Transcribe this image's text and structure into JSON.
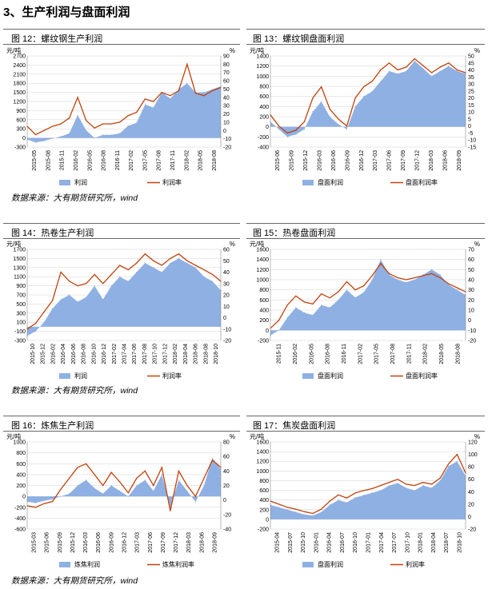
{
  "section_title": "3、生产利润与盘面利润",
  "source": "数据来源：大有期货研究所，wind",
  "colors": {
    "area": "#8fb0e2",
    "line": "#c2410c",
    "grid": "#d0d0d0"
  },
  "chart_data": [
    {
      "type": "area",
      "title": "图 12：螺纹钢生产利润",
      "left_unit": "元/吨",
      "right_unit": "%",
      "ylim": [
        -300,
        2700
      ],
      "y2lim": [
        -20,
        90
      ],
      "yticks": [
        -300,
        0,
        300,
        600,
        900,
        1200,
        1500,
        1800,
        2100,
        2400,
        2700
      ],
      "y2ticks": [
        -20,
        -10,
        0,
        10,
        20,
        30,
        40,
        50,
        60,
        70,
        80,
        90
      ],
      "xticks": [
        "2015-05",
        "2015-08",
        "2015-11",
        "2016-02",
        "2016-05",
        "2016-08",
        "2016-11",
        "2017-02",
        "2017-05",
        "2017-08",
        "2017-11",
        "2018-02",
        "2018-05",
        "2018-08"
      ],
      "series": [
        {
          "name": "利润",
          "kind": "area",
          "axis": "left",
          "values": [
            -50,
            -150,
            -100,
            -20,
            50,
            150,
            750,
            250,
            0,
            100,
            100,
            150,
            400,
            500,
            1100,
            1000,
            1500,
            1300,
            1600,
            1800,
            1500,
            1500,
            1600,
            1700
          ]
        },
        {
          "name": "利润率",
          "kind": "line",
          "axis": "right",
          "values": [
            5,
            -5,
            0,
            5,
            8,
            15,
            40,
            12,
            3,
            8,
            8,
            10,
            18,
            22,
            38,
            35,
            46,
            42,
            48,
            80,
            45,
            42,
            48,
            52
          ]
        }
      ]
    },
    {
      "type": "area",
      "title": "图 13：螺纹钢盘面利润",
      "left_unit": "元/吨",
      "right_unit": "%",
      "ylim": [
        -400,
        1400
      ],
      "y2lim": [
        -15,
        50
      ],
      "yticks": [
        -400,
        -200,
        0,
        200,
        400,
        600,
        800,
        1000,
        1200,
        1400
      ],
      "y2ticks": [
        -15,
        -10,
        -5,
        0,
        5,
        10,
        15,
        20,
        25,
        30,
        35,
        40,
        45,
        50
      ],
      "xticks": [
        "2015-06",
        "2015-09",
        "2015-12",
        "2016-03",
        "2016-06",
        "2016-09",
        "2016-12",
        "2017-03",
        "2017-06",
        "2017-09",
        "2017-12",
        "2018-03",
        "2018-06",
        "2018-09"
      ],
      "series": [
        {
          "name": "盘面利润",
          "kind": "area",
          "axis": "left",
          "values": [
            100,
            -50,
            -200,
            -150,
            -50,
            300,
            500,
            200,
            50,
            -50,
            400,
            600,
            700,
            900,
            1100,
            1050,
            1100,
            1300,
            1150,
            1000,
            1100,
            1200,
            1100,
            1050
          ]
        },
        {
          "name": "盘面利润率",
          "kind": "line",
          "axis": "right",
          "values": [
            8,
            0,
            -5,
            -3,
            3,
            20,
            28,
            12,
            5,
            0,
            20,
            28,
            32,
            40,
            45,
            40,
            42,
            48,
            43,
            38,
            42,
            45,
            40,
            38
          ]
        }
      ]
    },
    {
      "type": "area",
      "title": "图 14：热卷生产利润",
      "left_unit": "元/吨",
      "right_unit": "%",
      "ylim": [
        -300,
        1700
      ],
      "y2lim": [
        -20,
        60
      ],
      "yticks": [
        -300,
        -100,
        100,
        300,
        500,
        700,
        900,
        1100,
        1300,
        1500,
        1700
      ],
      "y2ticks": [
        -20,
        -10,
        0,
        10,
        20,
        30,
        40,
        50,
        60
      ],
      "xticks": [
        "2015-10",
        "2015-12",
        "2016-02",
        "2016-04",
        "2016-06",
        "2016-08",
        "2016-10",
        "2016-12",
        "2017-02",
        "2017-04",
        "2017-06",
        "2017-08",
        "2017-10",
        "2017-12",
        "2018-02",
        "2018-04",
        "2018-06",
        "2018-08",
        "2018-10"
      ],
      "series": [
        {
          "name": "利润",
          "kind": "area",
          "axis": "left",
          "values": [
            -200,
            -100,
            100,
            400,
            600,
            700,
            550,
            650,
            900,
            600,
            900,
            1100,
            1000,
            1200,
            1400,
            1300,
            1200,
            1400,
            1500,
            1400,
            1300,
            1100,
            1000,
            800
          ]
        },
        {
          "name": "利润率",
          "kind": "line",
          "axis": "right",
          "values": [
            -10,
            -5,
            5,
            15,
            40,
            32,
            28,
            30,
            38,
            30,
            38,
            46,
            42,
            48,
            56,
            50,
            46,
            52,
            56,
            50,
            46,
            42,
            38,
            32
          ]
        }
      ]
    },
    {
      "type": "area",
      "title": "图 15：热卷盘面利润",
      "left_unit": "元/吨",
      "right_unit": "%",
      "ylim": [
        -200,
        1600
      ],
      "y2lim": [
        -20,
        70
      ],
      "yticks": [
        -200,
        0,
        200,
        400,
        600,
        800,
        1000,
        1200,
        1400,
        1600
      ],
      "y2ticks": [
        -20,
        -10,
        0,
        10,
        20,
        30,
        40,
        50,
        60,
        70
      ],
      "xticks": [
        "2015-11",
        "2016-02",
        "2016-05",
        "2016-08",
        "2016-11",
        "2017-02",
        "2017-05",
        "2017-08",
        "2017-11",
        "2018-02",
        "2018-05",
        "2018-08"
      ],
      "series": [
        {
          "name": "盘面利润",
          "kind": "area",
          "axis": "left",
          "values": [
            -100,
            0,
            250,
            450,
            350,
            300,
            500,
            450,
            600,
            800,
            650,
            750,
            1000,
            1400,
            1100,
            1000,
            950,
            1000,
            1100,
            1200,
            1100,
            900,
            800,
            700
          ]
        },
        {
          "name": "盘面利润率",
          "kind": "line",
          "axis": "right",
          "values": [
            -8,
            0,
            15,
            24,
            18,
            16,
            26,
            22,
            28,
            38,
            30,
            34,
            44,
            56,
            46,
            42,
            40,
            42,
            44,
            46,
            42,
            36,
            32,
            28
          ]
        }
      ]
    },
    {
      "type": "area",
      "title": "图 16：炼焦生产利润",
      "left_unit": "元/吨",
      "right_unit": "%",
      "ylim": [
        -600,
        1000
      ],
      "y2lim": [
        -40,
        80
      ],
      "yticks": [
        -600,
        -400,
        -200,
        0,
        200,
        400,
        600,
        800,
        1000
      ],
      "y2ticks": [
        -40,
        -20,
        0,
        20,
        40,
        60,
        80
      ],
      "xticks": [
        "2015-03",
        "2015-06",
        "2015-09",
        "2015-12",
        "2016-03",
        "2016-06",
        "2016-09",
        "2016-12",
        "2017-03",
        "2017-06",
        "2017-09",
        "2017-12",
        "2018-03",
        "2018-06",
        "2018-09"
      ],
      "series": [
        {
          "name": "炼焦利润",
          "kind": "area",
          "axis": "left",
          "values": [
            -100,
            -120,
            -80,
            -50,
            0,
            50,
            200,
            300,
            150,
            50,
            200,
            100,
            0,
            200,
            300,
            100,
            400,
            -200,
            300,
            100,
            -100,
            200,
            700,
            500
          ]
        },
        {
          "name": "炼焦利润率",
          "kind": "line",
          "axis": "right",
          "values": [
            -8,
            -10,
            -5,
            -2,
            15,
            30,
            45,
            50,
            35,
            20,
            38,
            25,
            10,
            30,
            40,
            20,
            45,
            -15,
            40,
            20,
            5,
            30,
            55,
            45
          ]
        }
      ]
    },
    {
      "type": "area",
      "title": "图 17：焦炭盘面利润",
      "left_unit": "元/吨",
      "right_unit": "%",
      "ylim": [
        -200,
        1600
      ],
      "y2lim": [
        -20,
        120
      ],
      "yticks": [
        -200,
        0,
        200,
        400,
        600,
        800,
        1000,
        1200,
        1400,
        1600
      ],
      "y2ticks": [
        -20,
        0,
        20,
        40,
        60,
        80,
        100,
        120
      ],
      "xticks": [
        "2015-04",
        "2015-07",
        "2015-10",
        "2016-01",
        "2016-04",
        "2016-07",
        "2016-10",
        "2017-01",
        "2017-04",
        "2017-07",
        "2017-10",
        "2018-01",
        "2018-04",
        "2018-07",
        "2018-10"
      ],
      "series": [
        {
          "name": "盘面利润",
          "kind": "area",
          "axis": "left",
          "values": [
            300,
            250,
            200,
            150,
            100,
            80,
            150,
            300,
            400,
            350,
            450,
            500,
            550,
            600,
            700,
            750,
            650,
            600,
            700,
            650,
            800,
            1100,
            1200,
            900
          ]
        },
        {
          "name": "利润率",
          "kind": "line",
          "axis": "right",
          "values": [
            25,
            20,
            15,
            12,
            8,
            5,
            12,
            25,
            35,
            30,
            38,
            42,
            45,
            50,
            55,
            60,
            52,
            50,
            55,
            52,
            62,
            85,
            100,
            70
          ]
        }
      ]
    }
  ]
}
